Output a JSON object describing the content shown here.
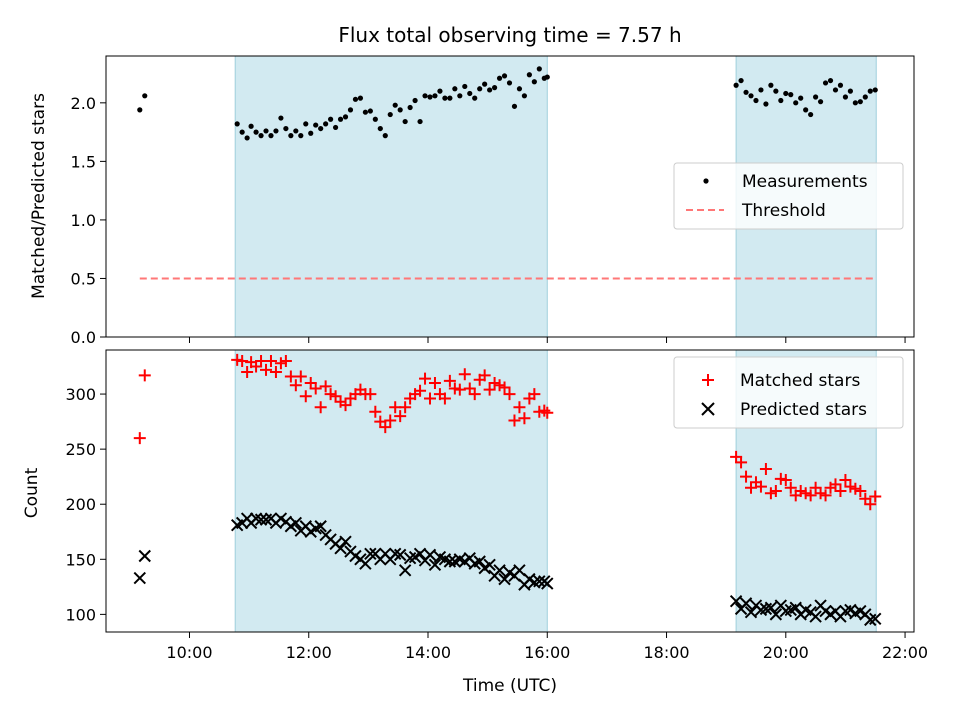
{
  "title": "Flux total observing time = 7.57 h",
  "xlabel": "Time (UTC)",
  "x_ticks": [
    "10:00",
    "12:00",
    "14:00",
    "16:00",
    "18:00",
    "20:00",
    "22:00"
  ],
  "shaded_intervals": [
    [
      "10:46",
      "16:00"
    ],
    [
      "19:10",
      "21:31"
    ]
  ],
  "colors": {
    "shade": "#add8e6",
    "measure": "#000000",
    "threshold": "#ff7777",
    "matched": "#ff0000",
    "predicted": "#000000"
  },
  "chart_data": [
    {
      "type": "scatter",
      "ylabel": "Matched/Predicted stars",
      "ylim": [
        0,
        2.4
      ],
      "y_ticks": [
        "0.0",
        "0.5",
        "1.0",
        "1.5",
        "2.0"
      ],
      "legend_position": "center-right",
      "series": [
        {
          "name": "Measurements",
          "marker": "dot",
          "x": [
            "09:10",
            "09:15",
            "10:48",
            "10:53",
            "10:58",
            "11:02",
            "11:07",
            "11:12",
            "11:17",
            "11:22",
            "11:27",
            "11:32",
            "11:37",
            "11:42",
            "11:47",
            "11:52",
            "11:57",
            "12:02",
            "12:07",
            "12:12",
            "12:17",
            "12:22",
            "12:27",
            "12:32",
            "12:37",
            "12:42",
            "12:47",
            "12:52",
            "12:57",
            "13:02",
            "13:07",
            "13:12",
            "13:17",
            "13:22",
            "13:27",
            "13:32",
            "13:37",
            "13:42",
            "13:47",
            "13:52",
            "13:57",
            "14:02",
            "14:07",
            "14:12",
            "14:17",
            "14:22",
            "14:27",
            "14:32",
            "14:37",
            "14:42",
            "14:47",
            "14:52",
            "14:57",
            "15:02",
            "15:07",
            "15:12",
            "15:17",
            "15:22",
            "15:27",
            "15:32",
            "15:37",
            "15:42",
            "15:47",
            "15:52",
            "15:57",
            "16:00",
            "19:10",
            "19:15",
            "19:20",
            "19:25",
            "19:30",
            "19:35",
            "19:40",
            "19:45",
            "19:50",
            "19:55",
            "20:00",
            "20:05",
            "20:10",
            "20:15",
            "20:20",
            "20:25",
            "20:30",
            "20:35",
            "20:40",
            "20:45",
            "20:50",
            "20:55",
            "21:00",
            "21:05",
            "21:10",
            "21:15",
            "21:20",
            "21:25",
            "21:30"
          ],
          "y": [
            1.94,
            2.06,
            1.82,
            1.75,
            1.7,
            1.8,
            1.75,
            1.72,
            1.76,
            1.72,
            1.76,
            1.87,
            1.78,
            1.72,
            1.76,
            1.72,
            1.82,
            1.74,
            1.81,
            1.78,
            1.82,
            1.86,
            1.79,
            1.86,
            1.88,
            1.94,
            2.03,
            2.04,
            1.92,
            1.93,
            1.86,
            1.78,
            1.72,
            1.9,
            1.98,
            1.94,
            1.84,
            1.96,
            2.02,
            1.84,
            2.06,
            2.05,
            2.06,
            2.1,
            2.04,
            2.04,
            2.12,
            2.06,
            2.14,
            2.08,
            2.04,
            2.12,
            2.16,
            2.11,
            2.13,
            2.21,
            2.23,
            2.17,
            1.97,
            2.12,
            2.06,
            2.24,
            2.18,
            2.29,
            2.21,
            2.22,
            2.15,
            2.19,
            2.09,
            2.06,
            2.02,
            2.11,
            1.99,
            2.15,
            2.1,
            2.02,
            2.08,
            2.07,
            2.0,
            2.04,
            1.94,
            1.9,
            2.05,
            2.01,
            2.17,
            2.19,
            2.11,
            2.15,
            2.05,
            2.1,
            2.0,
            2.01,
            2.05,
            2.1,
            2.11
          ]
        },
        {
          "name": "Threshold",
          "marker": "dashed-line",
          "x": [
            "09:10",
            "21:31"
          ],
          "y": [
            0.5,
            0.5
          ]
        }
      ]
    },
    {
      "type": "scatter",
      "ylabel": "Count",
      "ylim": [
        84,
        340
      ],
      "y_ticks": [
        "100",
        "150",
        "200",
        "250",
        "300"
      ],
      "legend_position": "top-right",
      "series": [
        {
          "name": "Matched stars",
          "marker": "plus",
          "x": [
            "09:10",
            "09:15",
            "10:48",
            "10:53",
            "10:58",
            "11:02",
            "11:07",
            "11:12",
            "11:17",
            "11:22",
            "11:27",
            "11:32",
            "11:37",
            "11:42",
            "11:47",
            "11:52",
            "11:57",
            "12:02",
            "12:07",
            "12:12",
            "12:17",
            "12:22",
            "12:27",
            "12:32",
            "12:37",
            "12:42",
            "12:47",
            "12:52",
            "12:57",
            "13:02",
            "13:07",
            "13:12",
            "13:17",
            "13:22",
            "13:27",
            "13:32",
            "13:37",
            "13:42",
            "13:47",
            "13:52",
            "13:57",
            "14:02",
            "14:07",
            "14:12",
            "14:17",
            "14:22",
            "14:27",
            "14:32",
            "14:37",
            "14:42",
            "14:47",
            "14:52",
            "14:57",
            "15:02",
            "15:07",
            "15:12",
            "15:17",
            "15:22",
            "15:27",
            "15:32",
            "15:37",
            "15:42",
            "15:47",
            "15:52",
            "15:57",
            "16:00",
            "19:10",
            "19:15",
            "19:20",
            "19:25",
            "19:30",
            "19:35",
            "19:40",
            "19:45",
            "19:50",
            "19:55",
            "20:00",
            "20:05",
            "20:10",
            "20:15",
            "20:20",
            "20:25",
            "20:30",
            "20:35",
            "20:40",
            "20:45",
            "20:50",
            "20:55",
            "21:00",
            "21:05",
            "21:10",
            "21:15",
            "21:20",
            "21:25",
            "21:30"
          ],
          "y": [
            260,
            317,
            331,
            330,
            320,
            329,
            325,
            330,
            322,
            330,
            320,
            328,
            330,
            316,
            308,
            316,
            298,
            310,
            305,
            288,
            307,
            300,
            298,
            293,
            290,
            296,
            300,
            304,
            300,
            300,
            284,
            275,
            270,
            276,
            288,
            280,
            288,
            296,
            300,
            303,
            314,
            296,
            310,
            300,
            296,
            312,
            305,
            304,
            318,
            305,
            300,
            313,
            317,
            304,
            310,
            308,
            306,
            300,
            276,
            288,
            278,
            296,
            300,
            284,
            285,
            283,
            243,
            238,
            225,
            215,
            220,
            216,
            232,
            210,
            212,
            223,
            222,
            215,
            208,
            212,
            210,
            208,
            215,
            210,
            208,
            215,
            218,
            212,
            222,
            216,
            214,
            212,
            205,
            200,
            207
          ]
        },
        {
          "name": "Predicted stars",
          "marker": "x",
          "x": [
            "09:10",
            "09:15",
            "10:48",
            "10:53",
            "10:58",
            "11:02",
            "11:07",
            "11:12",
            "11:17",
            "11:22",
            "11:27",
            "11:32",
            "11:37",
            "11:42",
            "11:47",
            "11:52",
            "11:57",
            "12:02",
            "12:07",
            "12:12",
            "12:17",
            "12:22",
            "12:27",
            "12:32",
            "12:37",
            "12:42",
            "12:47",
            "12:52",
            "12:57",
            "13:02",
            "13:07",
            "13:12",
            "13:17",
            "13:22",
            "13:27",
            "13:32",
            "13:37",
            "13:42",
            "13:47",
            "13:52",
            "13:57",
            "14:02",
            "14:07",
            "14:12",
            "14:17",
            "14:22",
            "14:27",
            "14:32",
            "14:37",
            "14:42",
            "14:47",
            "14:52",
            "14:57",
            "15:02",
            "15:07",
            "15:12",
            "15:17",
            "15:22",
            "15:27",
            "15:32",
            "15:37",
            "15:42",
            "15:47",
            "15:52",
            "15:57",
            "16:00",
            "19:10",
            "19:15",
            "19:20",
            "19:25",
            "19:30",
            "19:35",
            "19:40",
            "19:45",
            "19:50",
            "19:55",
            "20:00",
            "20:05",
            "20:10",
            "20:15",
            "20:20",
            "20:25",
            "20:30",
            "20:35",
            "20:40",
            "20:45",
            "20:50",
            "20:55",
            "21:00",
            "21:05",
            "21:10",
            "21:15",
            "21:20",
            "21:25",
            "21:30"
          ],
          "y": [
            133,
            153,
            181,
            183,
            187,
            183,
            187,
            186,
            186,
            187,
            183,
            187,
            184,
            180,
            183,
            176,
            180,
            175,
            178,
            180,
            172,
            168,
            164,
            160,
            166,
            157,
            153,
            150,
            146,
            155,
            155,
            150,
            155,
            150,
            155,
            154,
            140,
            151,
            152,
            155,
            149,
            154,
            145,
            152,
            150,
            148,
            148,
            150,
            148,
            151,
            146,
            148,
            142,
            145,
            135,
            140,
            132,
            138,
            135,
            140,
            127,
            132,
            129,
            130,
            130,
            128,
            112,
            105,
            110,
            102,
            108,
            104,
            105,
            106,
            100,
            108,
            103,
            104,
            106,
            100,
            104,
            102,
            98,
            108,
            103,
            100,
            103,
            98,
            103,
            104,
            101,
            103,
            100,
            95,
            96
          ]
        }
      ]
    }
  ]
}
